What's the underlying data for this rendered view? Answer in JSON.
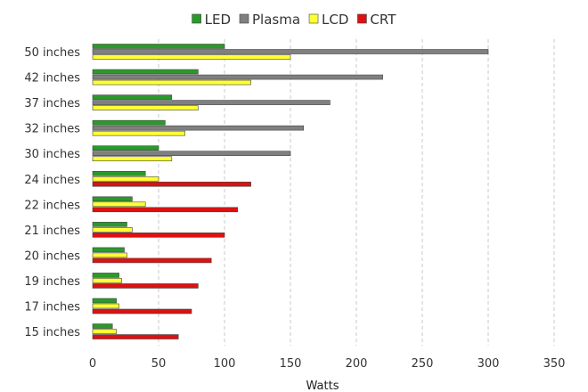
{
  "chart_data": {
    "type": "bar",
    "orientation": "horizontal",
    "categories": [
      "50 inches",
      "42 inches",
      "37 inches",
      "32 inches",
      "30 inches",
      "24 inches",
      "22 inches",
      "21 inches",
      "20 inches",
      "19 inches",
      "17 inches",
      "15 inches"
    ],
    "series": [
      {
        "name": "LED",
        "color": "#2a9a2a",
        "values": [
          100,
          80,
          60,
          55,
          50,
          40,
          30,
          26,
          24,
          20,
          18,
          15
        ]
      },
      {
        "name": "Plasma",
        "color": "#808080",
        "values": [
          300,
          220,
          180,
          160,
          150,
          null,
          null,
          null,
          null,
          null,
          null,
          null
        ]
      },
      {
        "name": "LCD",
        "color": "#ffff33",
        "values": [
          150,
          120,
          80,
          70,
          60,
          50,
          40,
          30,
          26,
          22,
          20,
          18
        ]
      },
      {
        "name": "CRT",
        "color": "#dd1111",
        "values": [
          null,
          null,
          null,
          null,
          null,
          120,
          110,
          100,
          90,
          80,
          75,
          65
        ]
      }
    ],
    "xlabel": "Watts",
    "xlim": [
      0,
      350
    ],
    "xticks": [
      0,
      50,
      100,
      150,
      200,
      250,
      300,
      350
    ],
    "grid": "vertical dashed",
    "legend_position": "top"
  }
}
